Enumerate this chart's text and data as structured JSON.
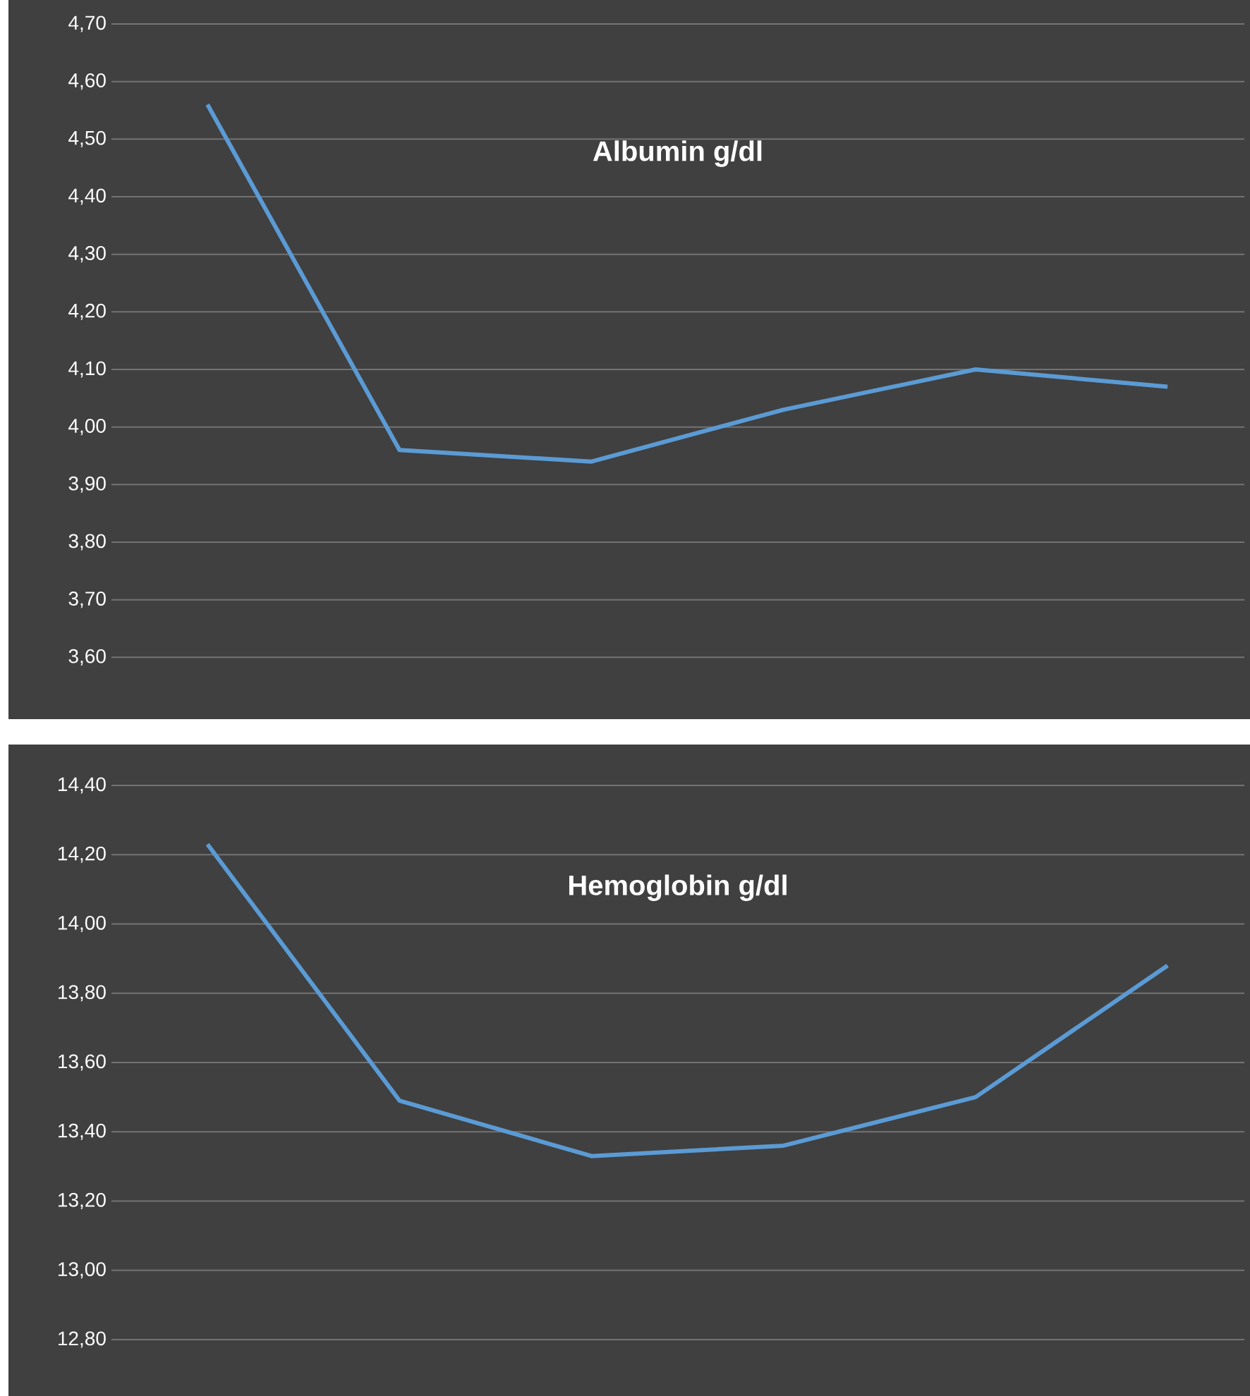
{
  "chart_data": [
    {
      "type": "line",
      "title": "Albumin g/dl",
      "categories": [
        null,
        null,
        null,
        null,
        null,
        null
      ],
      "values": [
        4.56,
        3.96,
        3.94,
        4.03,
        4.1,
        4.07
      ],
      "color": "#5b9bd5",
      "ylim": [
        3.5,
        4.7
      ],
      "yticks": [
        {
          "value": 3.6,
          "label": "3,60"
        },
        {
          "value": 3.7,
          "label": "3,70"
        },
        {
          "value": 3.8,
          "label": "3,80"
        },
        {
          "value": 3.9,
          "label": "3,90"
        },
        {
          "value": 4.0,
          "label": "4,00"
        },
        {
          "value": 4.1,
          "label": "4,10"
        },
        {
          "value": 4.2,
          "label": "4,20"
        },
        {
          "value": 4.3,
          "label": "4,30"
        },
        {
          "value": 4.4,
          "label": "4,40"
        },
        {
          "value": 4.5,
          "label": "4,50"
        },
        {
          "value": 4.6,
          "label": "4,60"
        },
        {
          "value": 4.7,
          "label": "4,70"
        }
      ],
      "grid": "y",
      "tick_labels": "y"
    },
    {
      "type": "line",
      "title": "Hemoglobin g/dl",
      "categories": [
        null,
        null,
        null,
        null,
        null,
        null
      ],
      "values": [
        14.23,
        13.49,
        13.33,
        13.36,
        13.5,
        13.88
      ],
      "color": "#5b9bd5",
      "ylim": [
        12.8,
        14.4
      ],
      "yticks": [
        {
          "value": 12.8,
          "label": "12,80"
        },
        {
          "value": 13.0,
          "label": "13,00"
        },
        {
          "value": 13.2,
          "label": "13,20"
        },
        {
          "value": 13.4,
          "label": "13,40"
        },
        {
          "value": 13.6,
          "label": "13,60"
        },
        {
          "value": 13.8,
          "label": "13,80"
        },
        {
          "value": 14.0,
          "label": "14,00"
        },
        {
          "value": 14.2,
          "label": "14,20"
        },
        {
          "value": 14.4,
          "label": "14,40"
        }
      ],
      "grid": "y",
      "tick_labels": "y"
    }
  ]
}
